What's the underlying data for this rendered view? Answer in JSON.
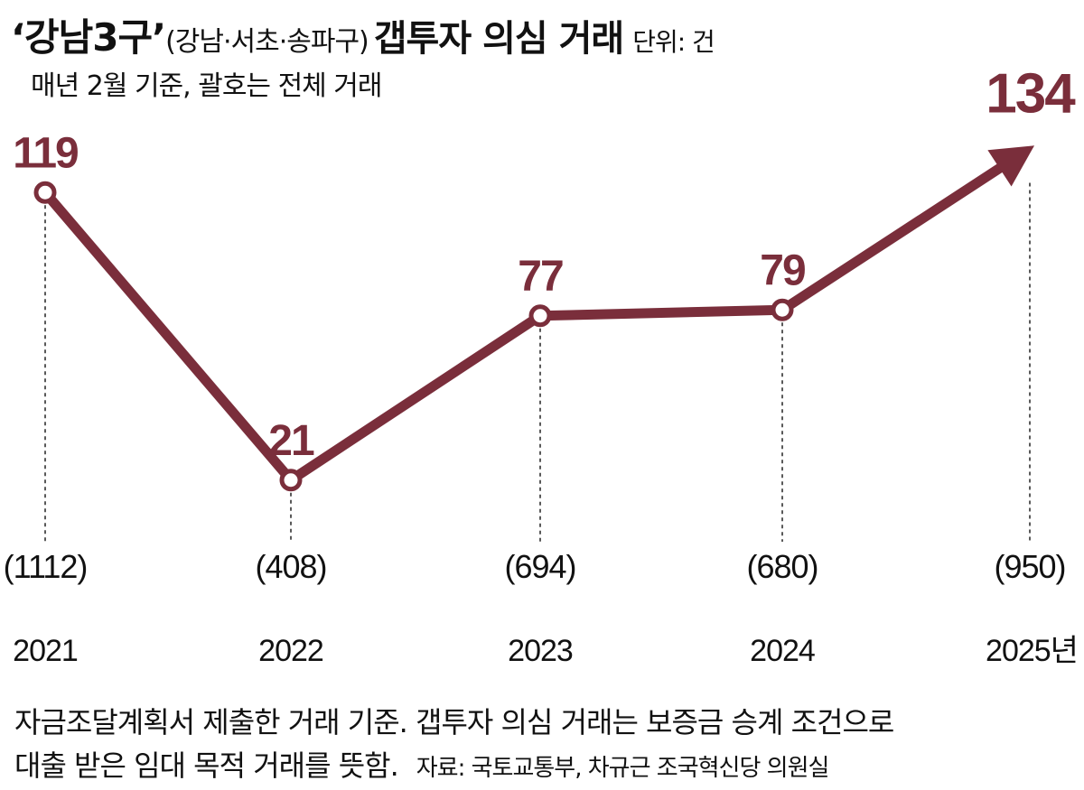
{
  "header": {
    "title_main": "‘강남3구’",
    "title_paren": "(강남·서초·송파구)",
    "title_rest": "갭투자 의심 거래",
    "unit": "단위: 건",
    "subtitle": "매년 2월 기준, 괄호는 전체 거래"
  },
  "footer": {
    "line1": "자금조달계획서 제출한 거래 기준. 갭투자 의심 거래는 보증금 승계 조건으로",
    "line2": "대출 받은 임대 목적 거래를 뜻함.",
    "source": "자료: 국토교통부, 차규근 조국혁신당 의원실"
  },
  "chart_data": {
    "type": "line",
    "categories": [
      "2021",
      "2022",
      "2023",
      "2024",
      "2025년"
    ],
    "series": [
      {
        "values": [
          119,
          21,
          77,
          79,
          134
        ]
      }
    ],
    "totals_labels": [
      "(1112)",
      "(408)",
      "(694)",
      "(680)",
      "(950)"
    ],
    "ylim": [
      0,
      140
    ],
    "grid": false,
    "line_color": "#7a2e3b",
    "last_point": "arrow"
  }
}
